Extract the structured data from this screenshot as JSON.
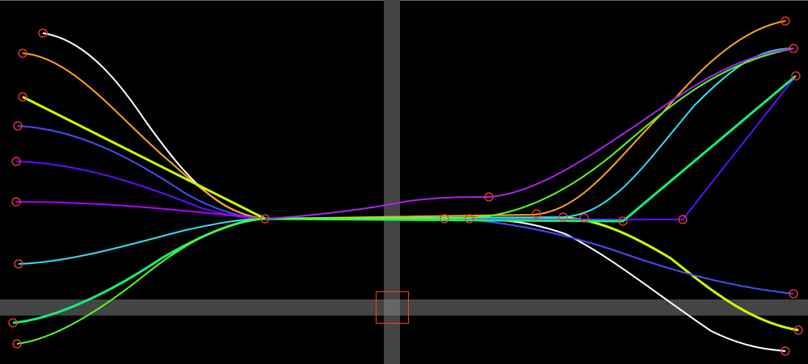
{
  "canvas": {
    "background": "#000000",
    "guide_color": "#444444",
    "top_border_color": "#666666",
    "node_color": "#ff3b30",
    "selection_box_color": "#ff3b30"
  },
  "curves": [
    {
      "name": "white-curve",
      "color": "#ffffff"
    },
    {
      "name": "orange-curve",
      "color": "#ffa31a"
    },
    {
      "name": "yellow-green-curve",
      "color": "#ccff00"
    },
    {
      "name": "blue-curve",
      "color": "#4a4aff"
    },
    {
      "name": "indigo-curve",
      "color": "#5a10ff"
    },
    {
      "name": "violet-curve",
      "color": "#b000ff"
    },
    {
      "name": "cyan-curve",
      "color": "#33ddee"
    },
    {
      "name": "spring-green-curve",
      "color": "#11ee77"
    },
    {
      "name": "green-curve",
      "color": "#55ff22"
    },
    {
      "name": "purple-curve",
      "color": "#aa22ee"
    }
  ]
}
